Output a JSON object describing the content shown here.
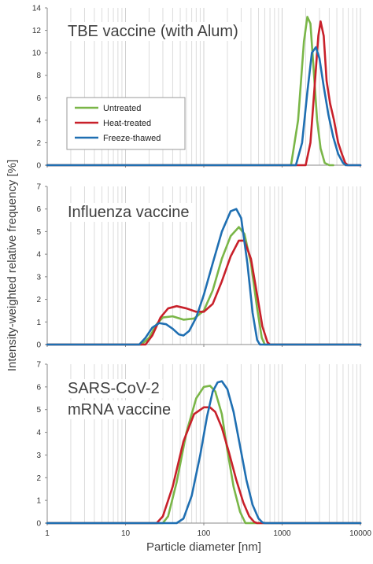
{
  "figure": {
    "ylabel": "Intensity-weighted relative frequency [%]",
    "xlabel": "Particle diameter [nm]",
    "x_ticks": [
      "1",
      "10",
      "100",
      "1000",
      "10000"
    ]
  },
  "legend": {
    "panel": 0,
    "entries": [
      {
        "label": "Untreated",
        "color": "#7ab648"
      },
      {
        "label": "Heat-treated",
        "color": "#c8202a"
      },
      {
        "label": "Freeze-thawed",
        "color": "#1f6fb2"
      }
    ]
  },
  "chart_data": [
    {
      "type": "line",
      "title_lines": [
        "TBE vaccine (with Alum)"
      ],
      "xscale": "log",
      "xlim": [
        1,
        10000
      ],
      "ylim": [
        0,
        14
      ],
      "yticks": [
        0,
        2,
        4,
        6,
        8,
        10,
        12,
        14
      ],
      "grid": "vertical minor lines",
      "series": [
        {
          "name": "Untreated",
          "color": "#7ab648",
          "x": [
            1,
            1300,
            1600,
            1900,
            2100,
            2300,
            2500,
            2800,
            3100,
            3500,
            4000,
            4500
          ],
          "y": [
            0,
            0,
            4,
            11,
            13.2,
            12.6,
            9,
            4,
            1.5,
            0.2,
            0,
            0
          ]
        },
        {
          "name": "Heat-treated",
          "color": "#c8202a",
          "x": [
            1,
            2000,
            2300,
            2600,
            2900,
            3100,
            3400,
            3700,
            4100,
            4600,
            5200,
            5800,
            6400,
            6900,
            10000
          ],
          "y": [
            0,
            0,
            2,
            7,
            11.5,
            12.8,
            11.5,
            7.5,
            5.5,
            4,
            2,
            1,
            0.2,
            0,
            0
          ]
        },
        {
          "name": "Freeze-thawed",
          "color": "#1f6fb2",
          "x": [
            1,
            1500,
            1800,
            2100,
            2400,
            2700,
            3000,
            3400,
            3900,
            4500,
            5200,
            6000,
            6500,
            10000
          ],
          "y": [
            0,
            0,
            2,
            6.5,
            10,
            10.5,
            9.5,
            7,
            4.5,
            2.5,
            1,
            0.2,
            0,
            0
          ]
        }
      ]
    },
    {
      "type": "line",
      "title_lines": [
        "Influenza vaccine"
      ],
      "xscale": "log",
      "xlim": [
        1,
        10000
      ],
      "ylim": [
        0,
        7
      ],
      "yticks": [
        0,
        1,
        2,
        3,
        4,
        5,
        6,
        7
      ],
      "grid": "vertical minor lines",
      "series": [
        {
          "name": "Untreated",
          "color": "#7ab648",
          "x": [
            1,
            16,
            20,
            25,
            30,
            40,
            55,
            75,
            100,
            130,
            170,
            220,
            280,
            330,
            400,
            480,
            550,
            600,
            10000
          ],
          "y": [
            0,
            0,
            0.3,
            0.9,
            1.2,
            1.25,
            1.1,
            1.15,
            1.5,
            2.4,
            3.8,
            4.8,
            5.2,
            4.9,
            3.6,
            1.6,
            0.3,
            0,
            0
          ]
        },
        {
          "name": "Heat-treated",
          "color": "#c8202a",
          "x": [
            1,
            18,
            22,
            28,
            35,
            45,
            60,
            80,
            100,
            130,
            170,
            220,
            280,
            330,
            400,
            480,
            560,
            650,
            700,
            10000
          ],
          "y": [
            0,
            0,
            0.4,
            1.2,
            1.6,
            1.7,
            1.6,
            1.45,
            1.45,
            1.8,
            2.8,
            3.9,
            4.6,
            4.6,
            3.8,
            2.2,
            0.8,
            0.1,
            0,
            0
          ]
        },
        {
          "name": "Freeze-thawed",
          "color": "#1f6fb2",
          "x": [
            1,
            15,
            18,
            22,
            27,
            33,
            40,
            48,
            55,
            65,
            80,
            100,
            130,
            170,
            220,
            260,
            300,
            360,
            420,
            480,
            520,
            10000
          ],
          "y": [
            0,
            0,
            0.3,
            0.75,
            0.95,
            0.9,
            0.7,
            0.45,
            0.4,
            0.6,
            1.2,
            2.2,
            3.6,
            5,
            5.9,
            6,
            5.6,
            3.6,
            1.4,
            0.2,
            0,
            0
          ]
        }
      ]
    },
    {
      "type": "line",
      "title_lines": [
        "SARS-CoV-2",
        "mRNA vaccine"
      ],
      "xscale": "log",
      "xlim": [
        1,
        10000
      ],
      "ylim": [
        0,
        7
      ],
      "yticks": [
        0,
        1,
        2,
        3,
        4,
        5,
        6,
        7
      ],
      "grid": "vertical minor lines",
      "series": [
        {
          "name": "Untreated",
          "color": "#7ab648",
          "x": [
            1,
            30,
            35,
            45,
            60,
            80,
            100,
            120,
            140,
            170,
            200,
            240,
            290,
            340,
            10000
          ],
          "y": [
            0,
            0,
            0.3,
            1.8,
            4,
            5.5,
            6,
            6.05,
            5.8,
            4.8,
            3.2,
            1.6,
            0.5,
            0,
            0
          ]
        },
        {
          "name": "Heat-treated",
          "color": "#c8202a",
          "x": [
            1,
            25,
            30,
            40,
            55,
            75,
            100,
            120,
            140,
            170,
            210,
            260,
            320,
            380,
            440,
            480,
            10000
          ],
          "y": [
            0,
            0,
            0.3,
            1.6,
            3.6,
            4.8,
            5.1,
            5.1,
            4.9,
            4.2,
            3.1,
            1.9,
            0.9,
            0.3,
            0.05,
            0,
            0
          ]
        },
        {
          "name": "Freeze-thawed",
          "color": "#1f6fb2",
          "x": [
            1,
            45,
            55,
            70,
            90,
            110,
            130,
            150,
            170,
            200,
            240,
            290,
            350,
            420,
            500,
            560,
            600,
            10000
          ],
          "y": [
            0,
            0,
            0.2,
            1.2,
            3,
            4.7,
            5.8,
            6.2,
            6.25,
            5.9,
            4.9,
            3.4,
            1.9,
            0.8,
            0.2,
            0.03,
            0,
            0
          ]
        }
      ]
    }
  ]
}
